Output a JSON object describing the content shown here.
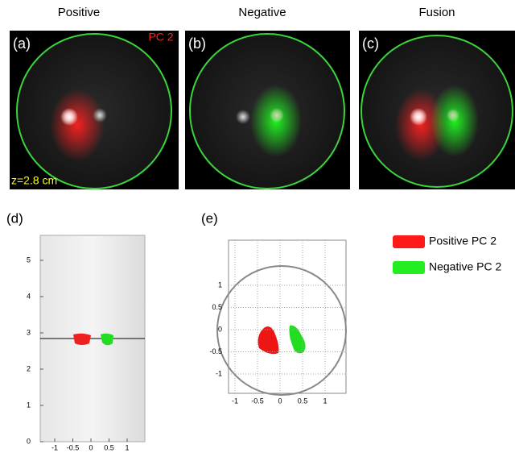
{
  "images": [
    {
      "title": "Positive",
      "label": "(a)",
      "annotation": "PC 2",
      "depth": "z=2.8 cm"
    },
    {
      "title": "Negative",
      "label": "(b)"
    },
    {
      "title": "Fusion",
      "label": "(c)"
    }
  ],
  "plot_d": {
    "label": "(d)",
    "xticks": [
      -1,
      -0.5,
      0,
      0.5,
      1
    ],
    "yticks": [
      0,
      1,
      2,
      3,
      4,
      5
    ]
  },
  "plot_e": {
    "label": "(e)",
    "xticks": [
      -1,
      -0.5,
      0,
      0.5,
      1
    ],
    "yticks": [
      1,
      0.5,
      0,
      -0.5,
      -1
    ]
  },
  "legend": [
    {
      "name": "Positive PC 2",
      "color": "#ff1a1a"
    },
    {
      "name": "Negative PC 2",
      "color": "#22ee22"
    }
  ]
}
